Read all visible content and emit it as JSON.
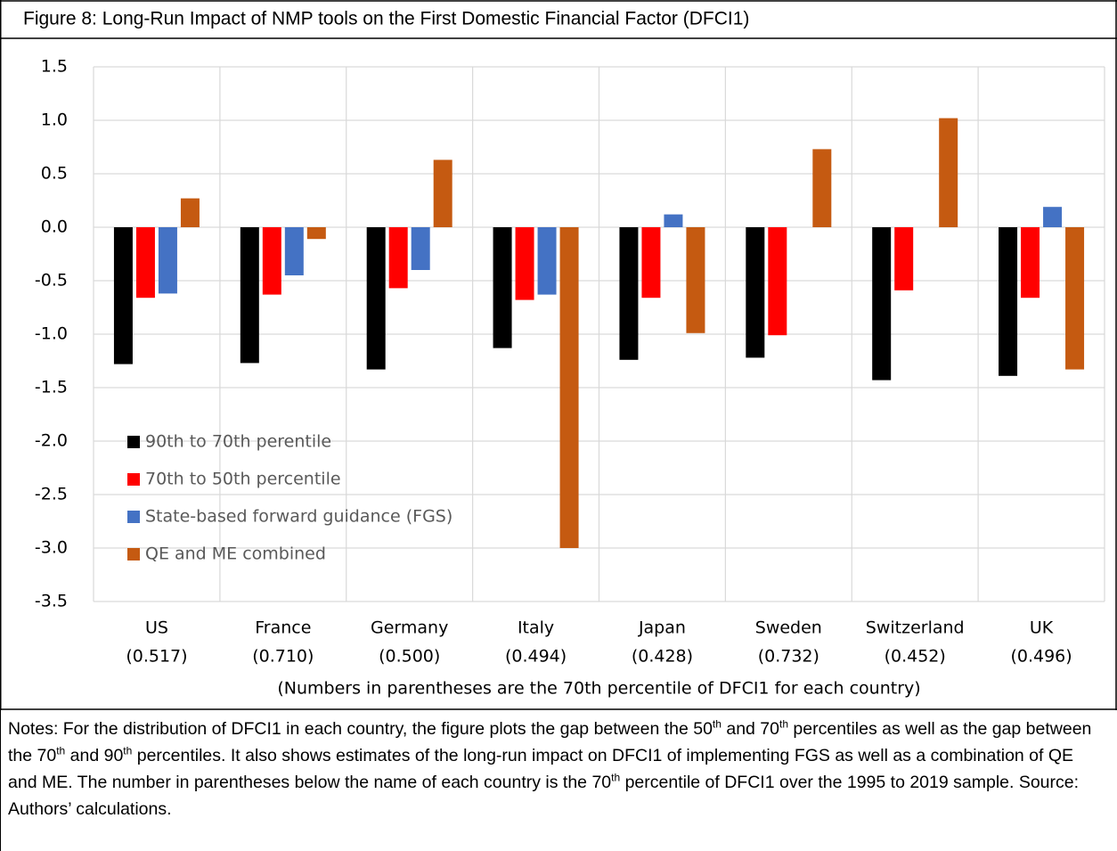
{
  "chart_data": {
    "type": "bar",
    "title": "Figure 8: Long-Run Impact of NMP tools on the First Domestic Financial Factor (DFCI1)",
    "categories": [
      "US",
      "France",
      "Germany",
      "Italy",
      "Japan",
      "Sweden",
      "Switzerland",
      "UK"
    ],
    "category_sublabels": [
      "(0.517)",
      "(0.710)",
      "(0.500)",
      "(0.494)",
      "(0.428)",
      "(0.732)",
      "(0.452)",
      "(0.496)"
    ],
    "x_note": "(Numbers in parentheses are the 70th percentile of DFCI1 for each country)",
    "series": [
      {
        "name": "90th to 70th perentile",
        "color": "#000000",
        "values": [
          -1.28,
          -1.27,
          -1.33,
          -1.13,
          -1.24,
          -1.22,
          -1.43,
          -1.39
        ]
      },
      {
        "name": "70th to 50th percentile",
        "color": "#ff0000",
        "values": [
          -0.66,
          -0.63,
          -0.57,
          -0.68,
          -0.66,
          -1.01,
          -0.59,
          -0.66
        ]
      },
      {
        "name": "State-based forward guidance (FGS)",
        "color": "#4472c4",
        "values": [
          -0.62,
          -0.45,
          -0.4,
          -0.63,
          0.12,
          null,
          null,
          0.19
        ]
      },
      {
        "name": "QE and ME combined",
        "color": "#c55a11",
        "values": [
          0.27,
          -0.11,
          0.63,
          -3.0,
          -0.99,
          0.73,
          1.02,
          -1.33
        ]
      }
    ],
    "ylim": [
      -3.5,
      1.5
    ],
    "yticks": [
      1.5,
      {
        "value": 1,
        "label": "1.0"
      },
      0.5,
      {
        "value": 0,
        "label": "0.0"
      },
      -0.5,
      {
        "value": -1,
        "label": "-1.0"
      },
      -1.5,
      {
        "value": -2,
        "label": "-2.0"
      },
      -2.5,
      {
        "value": -3,
        "label": "-3.0"
      },
      -3.5
    ],
    "grid": true,
    "legend": "left"
  },
  "notes": [
    "Notes: For the distribution of DFCI1 in each country, the figure plots the gap between the 50",
    "th",
    " and 70",
    "th",
    " percentiles as well as the gap between the 70",
    "th",
    " and 90",
    "th",
    " percentiles. It also shows estimates of the long-run impact on DFCI1 of implementing FGS as well as a combination of QE and ME. The number in parentheses below the name of each country is the 70",
    "th",
    " percentile of DFCI1 over the 1995 to 2019 sample. Source: Authors’ calculations."
  ]
}
